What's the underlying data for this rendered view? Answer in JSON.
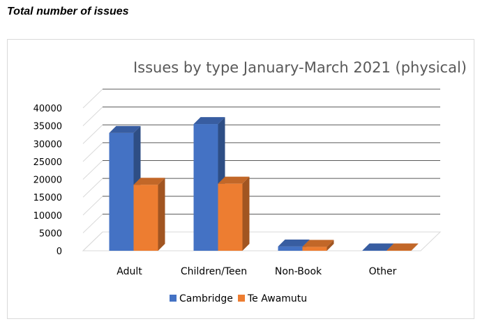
{
  "page": {
    "heading": "Total number of issues"
  },
  "chart_data": {
    "type": "bar",
    "title": "Issues by type January-March 2021 (physical)",
    "xlabel": "",
    "ylabel": "",
    "categories": [
      "Adult",
      "Children/Teen",
      "Non-Book",
      "Other"
    ],
    "series": [
      {
        "name": "Cambridge",
        "values": [
          33000,
          35500,
          1200,
          100
        ],
        "color": "#4472C4"
      },
      {
        "name": "Te Awamutu",
        "values": [
          18500,
          18800,
          1100,
          100
        ],
        "color": "#ED7D31"
      }
    ],
    "ylim": [
      0,
      40000
    ],
    "yticks": [
      "0",
      "5000",
      "10000",
      "15000",
      "20000",
      "25000",
      "30000",
      "35000",
      "40000"
    ],
    "grid": true,
    "legend": "bottom"
  }
}
